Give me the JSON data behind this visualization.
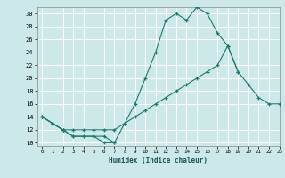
{
  "title": "",
  "xlabel": "Humidex (Indice chaleur)",
  "background_color": "#cce8e8",
  "grid_color": "#ffffff",
  "line_color": "#1a7a6e",
  "xlim": [
    -0.5,
    23
  ],
  "ylim": [
    9.5,
    31
  ],
  "xticks": [
    0,
    1,
    2,
    3,
    4,
    5,
    6,
    7,
    8,
    9,
    10,
    11,
    12,
    13,
    14,
    15,
    16,
    17,
    18,
    19,
    20,
    21,
    22,
    23
  ],
  "yticks": [
    10,
    12,
    14,
    16,
    18,
    20,
    22,
    24,
    26,
    28,
    30
  ],
  "line1_y": [
    14,
    13,
    12,
    11,
    11,
    11,
    10,
    10,
    null,
    null,
    null,
    null,
    null,
    null,
    null,
    null,
    null,
    null,
    null,
    null,
    null,
    null,
    null,
    null
  ],
  "line2_y": [
    14,
    13,
    12,
    11,
    11,
    11,
    11,
    10,
    13,
    16,
    20,
    24,
    29,
    30,
    29,
    31,
    30,
    27,
    25,
    21,
    null,
    null,
    null,
    null
  ],
  "line3_y": [
    14,
    13,
    12,
    12,
    12,
    12,
    12,
    12,
    13,
    14,
    15,
    16,
    17,
    18,
    19,
    20,
    21,
    22,
    25,
    21,
    19,
    17,
    16,
    16
  ]
}
